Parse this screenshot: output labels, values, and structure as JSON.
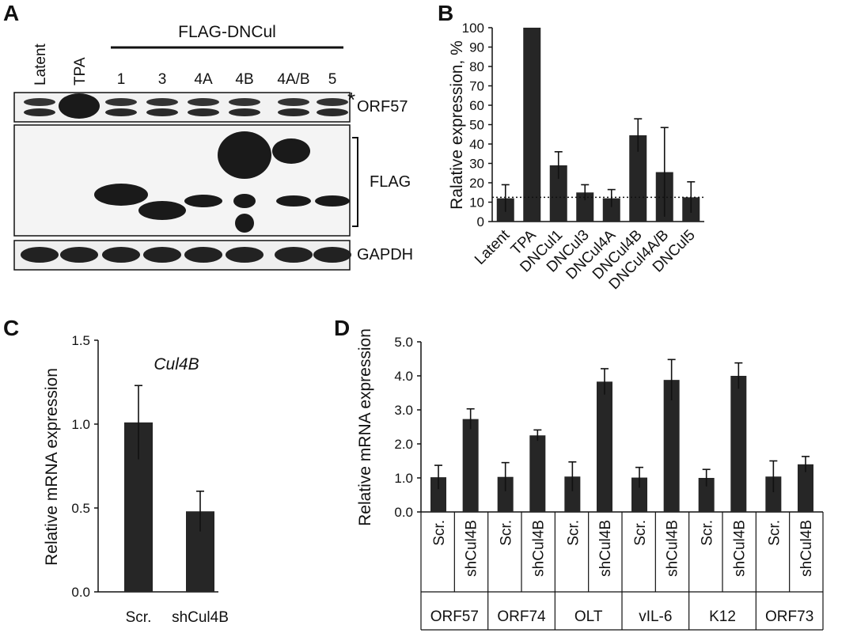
{
  "panels": {
    "A": {
      "letter": "A",
      "lane_labels": [
        "Latent",
        "TPA",
        "1",
        "3",
        "4A",
        "4B",
        "4A/B",
        "5"
      ],
      "group_label": "FLAG-DNCul",
      "blot_labels": [
        "ORF57",
        "FLAG",
        "GAPDH"
      ],
      "nonspecific_marker": "*"
    },
    "B": {
      "letter": "B"
    },
    "C": {
      "letter": "C"
    },
    "D": {
      "letter": "D"
    }
  },
  "chart_data": [
    {
      "panel": "B",
      "type": "bar",
      "title": "",
      "xlabel": "",
      "ylabel": "Ralative expression, %",
      "ylim": [
        0,
        100
      ],
      "yticks": [
        0,
        10,
        20,
        30,
        40,
        50,
        60,
        70,
        80,
        90,
        100
      ],
      "categories": [
        "Latent",
        "TPA",
        "DNCul1",
        "DNCul3",
        "DNCul4A",
        "DNCul4B",
        "DNCul4A/B",
        "DNCul5"
      ],
      "values": [
        12,
        100,
        29,
        15,
        12,
        44.5,
        25.5,
        12.5
      ],
      "errors": [
        7,
        0,
        7,
        4,
        4.5,
        8.5,
        23,
        8
      ],
      "reference_line": 12.5,
      "bar_color": "#262626"
    },
    {
      "panel": "C",
      "type": "bar",
      "title": "Cul4B",
      "xlabel": "",
      "ylabel": "Relative mRNA expression",
      "ylim": [
        0,
        1.5
      ],
      "yticks": [
        "0.0",
        "0.5",
        "1.0",
        "1.5"
      ],
      "categories": [
        "Scr.",
        "shCul4B"
      ],
      "values": [
        1.01,
        0.48
      ],
      "errors": [
        0.22,
        0.12
      ],
      "bar_color": "#262626"
    },
    {
      "panel": "D",
      "type": "bar",
      "title": "",
      "xlabel": "",
      "ylabel": "Relative mRNA expression",
      "ylim": [
        0,
        5
      ],
      "yticks": [
        "0.0",
        "1.0",
        "2.0",
        "3.0",
        "4.0",
        "5.0"
      ],
      "groups": [
        "ORF57",
        "ORF74",
        "OLT",
        "vIL-6",
        "K12",
        "ORF73"
      ],
      "conditions": [
        "Scr.",
        "shCul4B"
      ],
      "series": [
        {
          "values": [
            1.02,
            1.03,
            1.04,
            1.01,
            1.0,
            1.04
          ],
          "errors": [
            0.35,
            0.42,
            0.43,
            0.3,
            0.25,
            0.46
          ]
        },
        {
          "values": [
            2.73,
            2.25,
            3.83,
            3.88,
            4.0,
            1.4
          ],
          "errors": [
            0.3,
            0.16,
            0.38,
            0.6,
            0.38,
            0.23
          ]
        }
      ],
      "bar_color": "#262626"
    }
  ]
}
